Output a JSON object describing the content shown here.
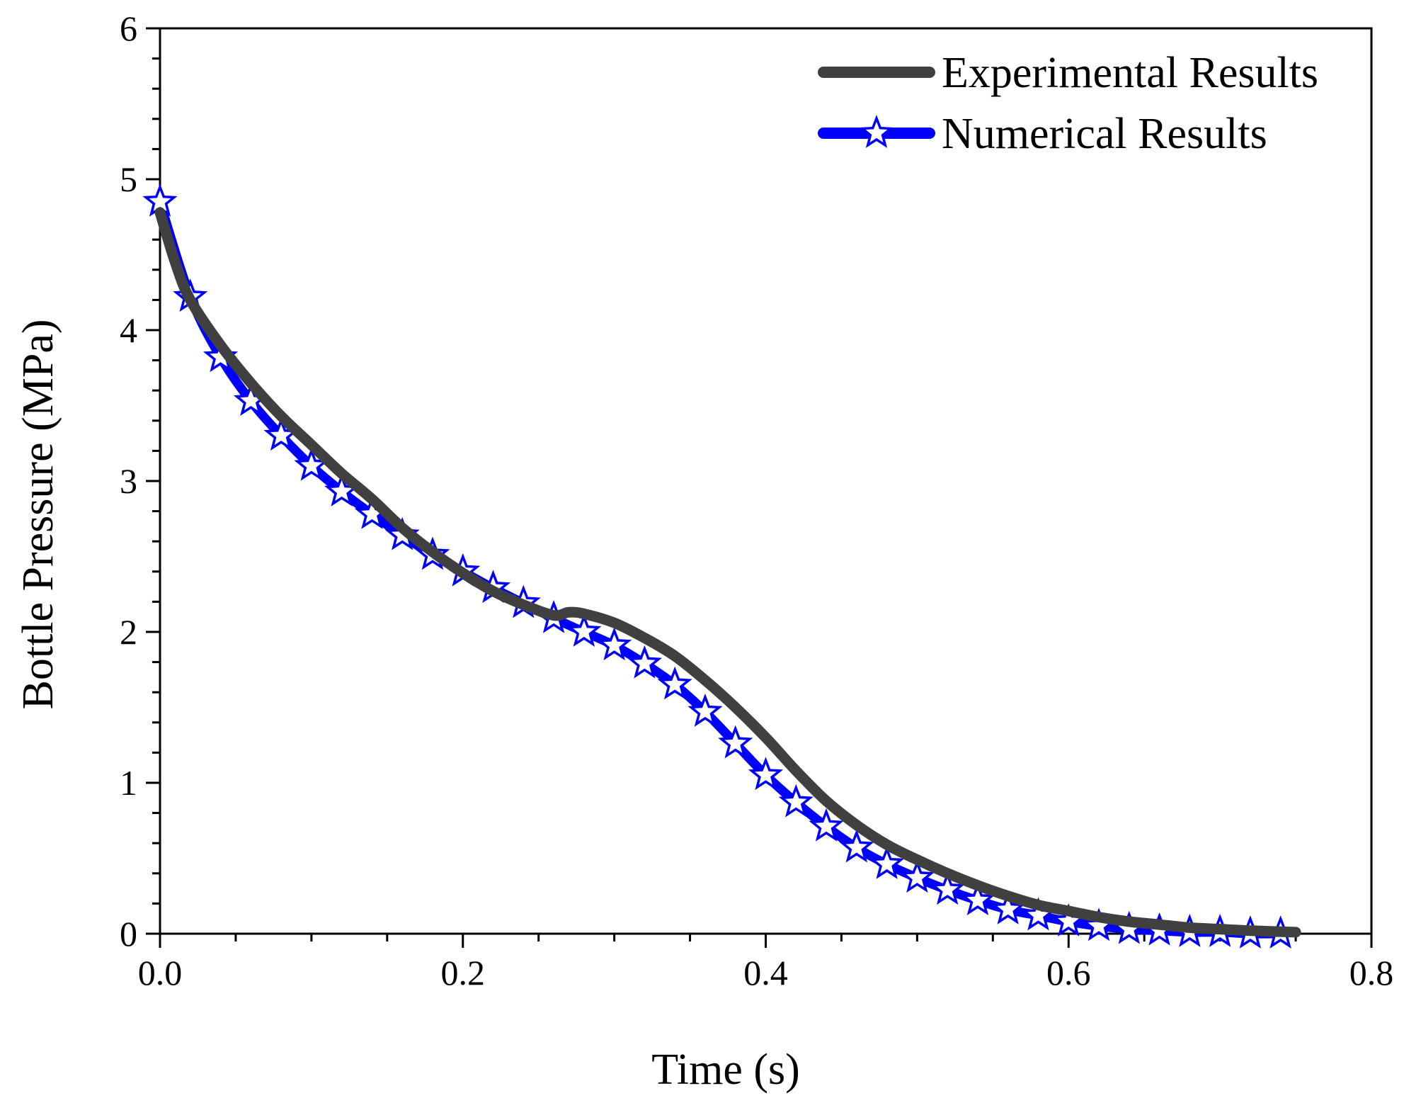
{
  "chart_data": {
    "type": "line",
    "title": "",
    "xlabel": "Time (s)",
    "ylabel": "Bottle Pressure (MPa)",
    "xlim": [
      0.0,
      0.8
    ],
    "ylim": [
      0,
      6
    ],
    "xticks": [
      0.0,
      0.2,
      0.4,
      0.6,
      0.8
    ],
    "xtick_labels": [
      "0.0",
      "0.2",
      "0.4",
      "0.6",
      "0.8"
    ],
    "yticks": [
      0,
      1,
      2,
      3,
      4,
      5,
      6
    ],
    "ytick_labels": [
      "0",
      "1",
      "2",
      "3",
      "4",
      "5",
      "6"
    ],
    "grid": false,
    "legend_position": "top-right",
    "series": [
      {
        "name": "Experimental Results",
        "color": "#404040",
        "marker": "none",
        "x": [
          0.0,
          0.01,
          0.02,
          0.04,
          0.06,
          0.08,
          0.1,
          0.12,
          0.14,
          0.16,
          0.18,
          0.2,
          0.22,
          0.24,
          0.26,
          0.27,
          0.28,
          0.3,
          0.32,
          0.34,
          0.36,
          0.38,
          0.4,
          0.42,
          0.44,
          0.46,
          0.48,
          0.5,
          0.52,
          0.54,
          0.56,
          0.58,
          0.6,
          0.62,
          0.64,
          0.66,
          0.68,
          0.7,
          0.72,
          0.75
        ],
        "values": [
          4.78,
          4.45,
          4.2,
          3.9,
          3.65,
          3.43,
          3.24,
          3.05,
          2.88,
          2.69,
          2.53,
          2.39,
          2.27,
          2.18,
          2.11,
          2.13,
          2.12,
          2.06,
          1.96,
          1.84,
          1.68,
          1.5,
          1.3,
          1.08,
          0.88,
          0.72,
          0.59,
          0.49,
          0.4,
          0.32,
          0.25,
          0.19,
          0.15,
          0.11,
          0.08,
          0.06,
          0.04,
          0.03,
          0.02,
          0.01
        ]
      },
      {
        "name": "Numerical Results",
        "color": "#0000ff",
        "marker": "star",
        "x": [
          0.0,
          0.02,
          0.04,
          0.06,
          0.08,
          0.1,
          0.12,
          0.14,
          0.16,
          0.18,
          0.2,
          0.22,
          0.24,
          0.26,
          0.28,
          0.3,
          0.32,
          0.34,
          0.36,
          0.38,
          0.4,
          0.42,
          0.44,
          0.46,
          0.48,
          0.5,
          0.52,
          0.54,
          0.56,
          0.58,
          0.6,
          0.62,
          0.64,
          0.66,
          0.68,
          0.7,
          0.72,
          0.74
        ],
        "values": [
          4.85,
          4.22,
          3.82,
          3.53,
          3.3,
          3.1,
          2.93,
          2.78,
          2.64,
          2.51,
          2.4,
          2.29,
          2.19,
          2.09,
          2.0,
          1.91,
          1.79,
          1.65,
          1.47,
          1.26,
          1.05,
          0.87,
          0.71,
          0.57,
          0.46,
          0.37,
          0.29,
          0.22,
          0.16,
          0.12,
          0.08,
          0.05,
          0.03,
          0.02,
          0.01,
          0.01,
          0.0,
          0.0
        ]
      }
    ]
  }
}
